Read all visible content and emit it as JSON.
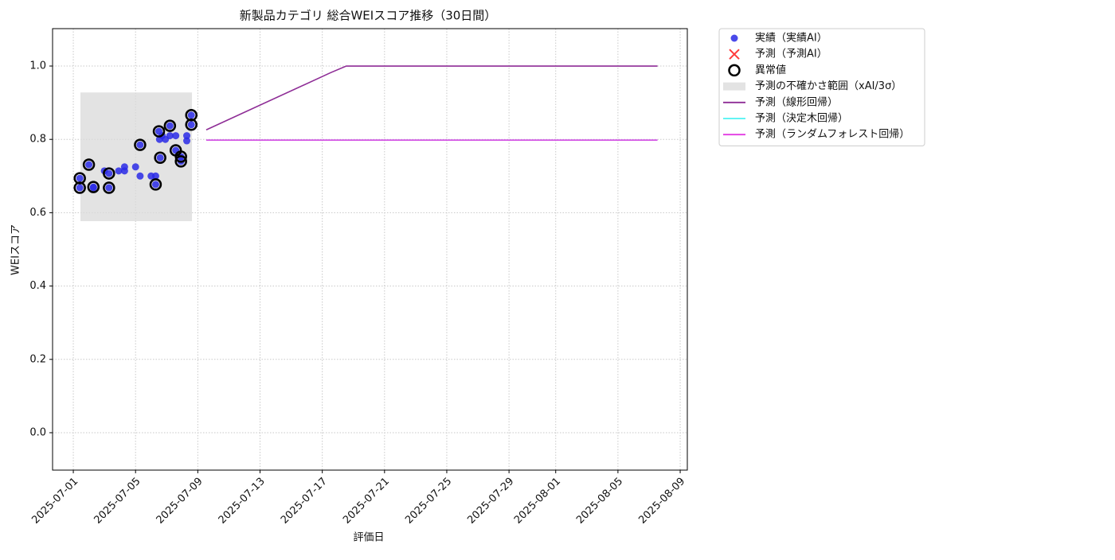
{
  "chart_data": {
    "type": "line",
    "title": "新製品カテゴリ 総合WEIスコア推移（30日間）",
    "x_label": "評価日",
    "y_label": "WEIスコア",
    "xlim": [
      "2025-06-29T16:00",
      "2025-08-09T11:00"
    ],
    "xticks": [
      "2025-07-01",
      "2025-07-05",
      "2025-07-09",
      "2025-07-13",
      "2025-07-17",
      "2025-07-21",
      "2025-07-25",
      "2025-07-29",
      "2025-08-01",
      "2025-08-05",
      "2025-08-09"
    ],
    "ylim": [
      -0.102,
      1.102
    ],
    "yticks": [
      {
        "value": 0,
        "label": "0.0"
      },
      0.2,
      0.4,
      0.6,
      0.8,
      {
        "value": 1,
        "label": "1.0"
      }
    ],
    "grid": true,
    "legend": "outside upper right",
    "series": [
      {
        "name": "実績（実績AI）",
        "type": "scatter",
        "color": "#2a2ae6",
        "x": [
          "2025-07-01T10:00",
          "2025-07-01T10:00",
          "2025-07-02T00:00",
          "2025-07-02T07:00",
          "2025-07-02T07:00",
          "2025-07-03T00:00",
          "2025-07-03T07:00",
          "2025-07-03T07:00",
          "2025-07-03T22:00",
          "2025-07-04T07:00",
          "2025-07-04T07:00",
          "2025-07-05T00:00",
          "2025-07-05T07:00",
          "2025-07-05T07:00",
          "2025-07-06T00:00",
          "2025-07-06T07:00",
          "2025-07-06T07:00",
          "2025-07-06T12:00",
          "2025-07-06T13:00",
          "2025-07-06T14:00",
          "2025-07-06T17:00",
          "2025-07-06T22:00",
          "2025-07-07T05:00",
          "2025-07-07T05:00",
          "2025-07-07T14:00",
          "2025-07-07T14:00",
          "2025-07-07T22:00",
          "2025-07-07T22:00",
          "2025-07-08T07:00",
          "2025-07-08T07:00",
          "2025-07-08T14:00",
          "2025-07-08T14:00"
        ],
        "values": [
          0.668,
          0.694,
          0.731,
          0.67,
          0.668,
          0.714,
          0.707,
          0.668,
          0.714,
          0.725,
          0.714,
          0.725,
          0.785,
          0.7,
          0.7,
          0.7,
          0.677,
          0.822,
          0.8,
          0.75,
          0.81,
          0.8,
          0.837,
          0.81,
          0.81,
          0.77,
          0.753,
          0.74,
          0.81,
          0.796,
          0.866,
          0.84
        ]
      },
      {
        "name": "予測（予測AI）",
        "type": "x-marker",
        "color": "#ff3b3b",
        "x": [],
        "values": []
      },
      {
        "name": "異常値",
        "type": "anomaly",
        "color": "#000000",
        "x": [
          "2025-07-01T10:00",
          "2025-07-01T10:00",
          "2025-07-02T00:00",
          "2025-07-02T07:00",
          "2025-07-03T07:00",
          "2025-07-03T07:00",
          "2025-07-05T07:00",
          "2025-07-06T07:00",
          "2025-07-06T12:00",
          "2025-07-06T14:00",
          "2025-07-07T05:00",
          "2025-07-07T14:00",
          "2025-07-07T22:00",
          "2025-07-07T22:00",
          "2025-07-08T14:00",
          "2025-07-08T14:00"
        ],
        "values": [
          0.668,
          0.694,
          0.731,
          0.67,
          0.707,
          0.668,
          0.785,
          0.677,
          0.822,
          0.75,
          0.837,
          0.77,
          0.753,
          0.74,
          0.866,
          0.84
        ]
      },
      {
        "name": "予測の不確かさ範囲（xAI/3σ）",
        "type": "band",
        "color": "#d9d9d9",
        "x": [
          "2025-07-01T11:00",
          "2025-07-08T15:00"
        ],
        "values": [
          0.577,
          0.928
        ]
      },
      {
        "name": "予測（線形回帰）",
        "type": "line",
        "color": "#8e2d96",
        "x": [
          "2025-07-09T13:00",
          "2025-07-17T13:00",
          "2025-07-18T13:00",
          "2025-08-07T13:00"
        ],
        "values": [
          0.826,
          0.982,
          1.0,
          1.0
        ]
      },
      {
        "name": "予測（決定木回帰）",
        "type": "line",
        "color": "#4cf2f2",
        "x": [
          "2025-07-09T13:00",
          "2025-08-07T13:00"
        ],
        "values": [
          0.798,
          0.798
        ]
      },
      {
        "name": "予測（ランダムフォレスト回帰）",
        "type": "line",
        "color": "#e23ae2",
        "x": [
          "2025-07-09T13:00",
          "2025-08-07T13:00"
        ],
        "values": [
          0.798,
          0.798
        ]
      }
    ]
  }
}
